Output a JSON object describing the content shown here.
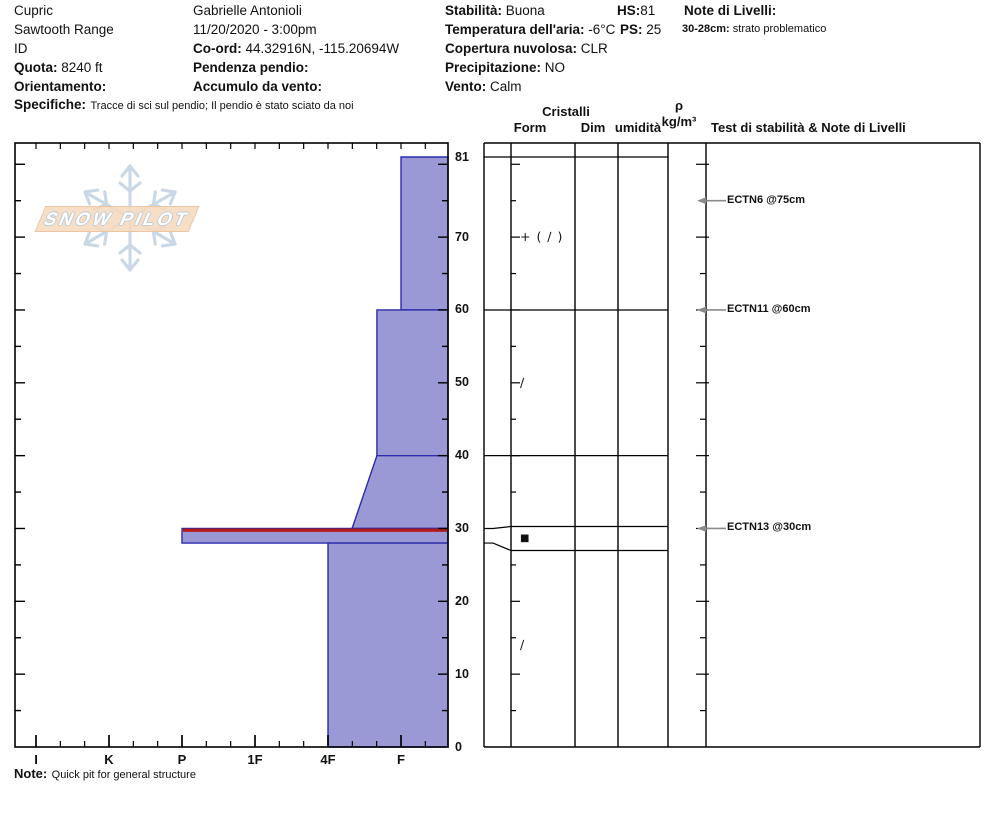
{
  "header": {
    "col1": {
      "site": "Cupric",
      "range": "Sawtooth Range",
      "state": "ID",
      "quota_label": "Quota:",
      "quota_value": "8240 ft",
      "orientamento_label": "Orientamento:",
      "specifiche_label": "Specifiche:",
      "specifiche_value": "Tracce di sci sul pendio;  Il pendio è stato sciato da noi"
    },
    "col2": {
      "observer": "Gabrielle Antonioli",
      "datetime": "11/20/2020 - 3:00pm",
      "coord_label": "Co-ord:",
      "coord_value": "44.32916N, -115.20694W",
      "pendenza_label": "Pendenza pendio:",
      "accumulo_label": "Accumulo da vento:"
    },
    "col3": {
      "stabilita_label": "Stabilità:",
      "stabilita_value": "Buona",
      "temp_label": "Temperatura dell'aria:",
      "temp_value": "-6°C",
      "copertura_label": "Copertura nuvolosa:",
      "copertura_value": "CLR",
      "precip_label": "Precipitazione:",
      "precip_value": "NO",
      "vento_label": "Vento:",
      "vento_value": "Calm"
    },
    "col4": {
      "hs_label": "HS:",
      "hs_value": "81",
      "ps_label": "PS:",
      "ps_value": "25"
    },
    "col5": {
      "note_label": "Note di Livelli:",
      "range_label": "30-28cm:",
      "range_value": "strato problematico"
    }
  },
  "panel_headers": {
    "cristalli": "Cristalli",
    "form": "Form",
    "dim": "Dim",
    "umidita": "umidità",
    "rho": "ρ",
    "rho_unit": "kg/m³",
    "test": "Test di stabilità & Note di Livelli"
  },
  "logo": {
    "text": "SNOW PILOT"
  },
  "bottom_note": {
    "label": "Note:",
    "text": "Quick pit for general structure"
  },
  "chart_data": {
    "type": "area",
    "title": "Snow pit hardness profile",
    "depth_axis": {
      "unit": "cm",
      "ticks": [
        0,
        10,
        20,
        30,
        40,
        50,
        60,
        70,
        81
      ],
      "max_depth": 81,
      "hs": 81
    },
    "hardness_axis": {
      "categories": [
        "I",
        "K",
        "P",
        "1F",
        "4F",
        "F"
      ],
      "note": "hand hardness, hardest (I) at left to softest (F) at right"
    },
    "layers": [
      {
        "top_cm": 81,
        "bottom_cm": 60,
        "hardness": "F",
        "hardness_index_top": 5,
        "hardness_index_bottom": 5
      },
      {
        "top_cm": 60,
        "bottom_cm": 40,
        "hardness": "F+",
        "hardness_index_top": 4.67,
        "hardness_index_bottom": 4.67
      },
      {
        "top_cm": 40,
        "bottom_cm": 30,
        "hardness": "F+ to 4F-F",
        "hardness_index_top": 4.67,
        "hardness_index_bottom": 4.33
      },
      {
        "top_cm": 30,
        "bottom_cm": 28,
        "hardness": "P",
        "hardness_index_top": 2,
        "hardness_index_bottom": 2,
        "problem_layer": true
      },
      {
        "top_cm": 28,
        "bottom_cm": 0,
        "hardness": "4F",
        "hardness_index_top": 4,
        "hardness_index_bottom": 4
      }
    ],
    "grains": [
      {
        "depth_cm": 70,
        "form": "+ ( ∕ )"
      },
      {
        "depth_cm": 50,
        "form": "∕"
      },
      {
        "depth_cm": 29,
        "form": "■",
        "crust": true
      },
      {
        "depth_cm": 14,
        "form": "∕"
      }
    ],
    "tests": [
      {
        "label": "ECTN6 @75cm",
        "depth_cm": 75
      },
      {
        "label": "ECTN11 @60cm",
        "depth_cm": 60
      },
      {
        "label": "ECTN13 @30cm",
        "depth_cm": 30
      }
    ],
    "colors": {
      "layer_fill": "#9a99d5",
      "layer_stroke": "#2b2bab",
      "problem_line": "#b51a1a",
      "arrow": "#8a8a8a",
      "snowflake": "#bdcfe0",
      "logo_band": "#f6dcc0"
    }
  }
}
